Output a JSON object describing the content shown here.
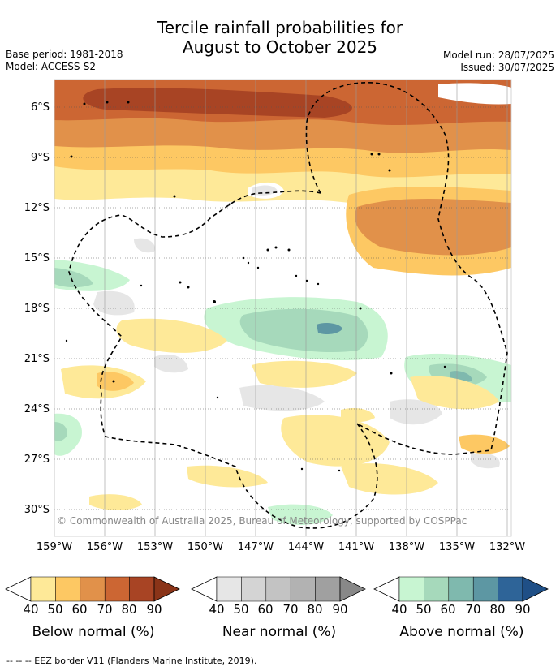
{
  "title_line1": "Tercile rainfall probabilities for",
  "title_line2": "August to October 2025",
  "meta": {
    "base_period": "Base period: 1981-2018",
    "model": "Model: ACCESS-S2",
    "model_run": "Model run: 28/07/2025",
    "issued": "Issued: 30/07/2025"
  },
  "map": {
    "lat_labels": [
      "6°S",
      "9°S",
      "12°S",
      "15°S",
      "18°S",
      "21°S",
      "24°S",
      "27°S",
      "30°S"
    ],
    "lon_labels": [
      "159°W",
      "156°W",
      "153°W",
      "150°W",
      "147°W",
      "144°W",
      "141°W",
      "138°W",
      "135°W",
      "132°W"
    ],
    "copyright": "© Commonwealth of Australia 2025, Bureau of Meteorology, supported by COSPPac"
  },
  "legend": {
    "below": {
      "title": "Below normal (%)",
      "ticks": [
        "40",
        "50",
        "60",
        "70",
        "80",
        "90"
      ],
      "colors": [
        "#fee998",
        "#fdc863",
        "#e1914a",
        "#cc6633",
        "#a84424",
        "#8a3418"
      ]
    },
    "near": {
      "title": "Near normal (%)",
      "ticks": [
        "40",
        "50",
        "60",
        "70",
        "80",
        "90"
      ],
      "colors": [
        "#e6e6e6",
        "#d4d4d4",
        "#c3c3c3",
        "#b2b2b2",
        "#a0a0a0",
        "#888888"
      ]
    },
    "above": {
      "title": "Above normal (%)",
      "ticks": [
        "40",
        "50",
        "60",
        "70",
        "80",
        "90"
      ],
      "colors": [
        "#c8f5d2",
        "#a6d9bb",
        "#7fb9ae",
        "#5d97a3",
        "#2e6498",
        "#1f4f86"
      ]
    }
  },
  "footer": "-- -- -- EEZ border V11 (Flanders Marine Institute, 2019)."
}
